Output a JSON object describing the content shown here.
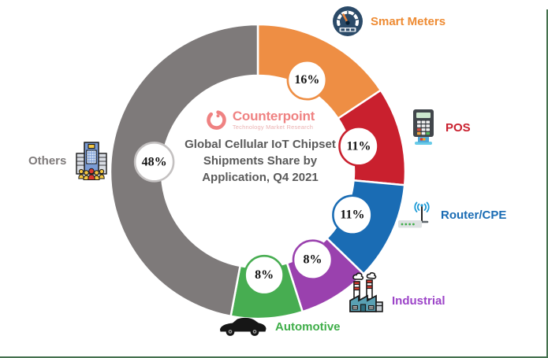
{
  "frame": {
    "background": "#FFFFFF",
    "border_color": "#44714E"
  },
  "logo": {
    "name": "Counterpoint",
    "tagline": "Technology Market Research",
    "name_color": "#EF8282",
    "tagline_color": "#EBB3B3"
  },
  "title": {
    "line1": "Global Cellular IoT Chipset",
    "line2": "Shipments Share by",
    "line3": "Application, Q4 2021",
    "color": "#5A5A5A"
  },
  "chart_data": {
    "type": "pie",
    "subtype": "donut",
    "title": "Global Cellular IoT Chipset Shipments Share by Application, Q4 2021",
    "start_angle_deg": 0,
    "direction": "clockwise",
    "unit": "%",
    "legend_position": "around-chart",
    "segments": [
      {
        "label": "Smart Meters",
        "value": 16,
        "display": "16%",
        "color": "#EE8E44",
        "label_color": "#EE8B33",
        "badge_border": "#EE8E44",
        "icon": "smart-meter-icon"
      },
      {
        "label": "POS",
        "value": 11,
        "display": "11%",
        "color": "#C9202E",
        "label_color": "#C9202E",
        "badge_border": "#C9202E",
        "icon": "pos-terminal-icon"
      },
      {
        "label": "Router/CPE",
        "value": 11,
        "display": "11%",
        "color": "#1A6CB4",
        "label_color": "#1A6CB4",
        "badge_border": "#1A6CB4",
        "icon": "router-icon"
      },
      {
        "label": "Industrial",
        "value": 8,
        "display": "8%",
        "color": "#9A41AE",
        "label_color": "#9C44C8",
        "badge_border": "#9A41AE",
        "icon": "factory-icon"
      },
      {
        "label": "Automotive",
        "value": 8,
        "display": "8%",
        "color": "#47AD51",
        "label_color": "#3FAE49",
        "badge_border": "#47AD51",
        "icon": "car-icon"
      },
      {
        "label": "Others",
        "value": 48,
        "display": "48%",
        "color": "#7E7A7A",
        "label_color": "#7F7B7B",
        "badge_border": "#C4C1C1",
        "icon": "company-building-icon"
      }
    ]
  }
}
